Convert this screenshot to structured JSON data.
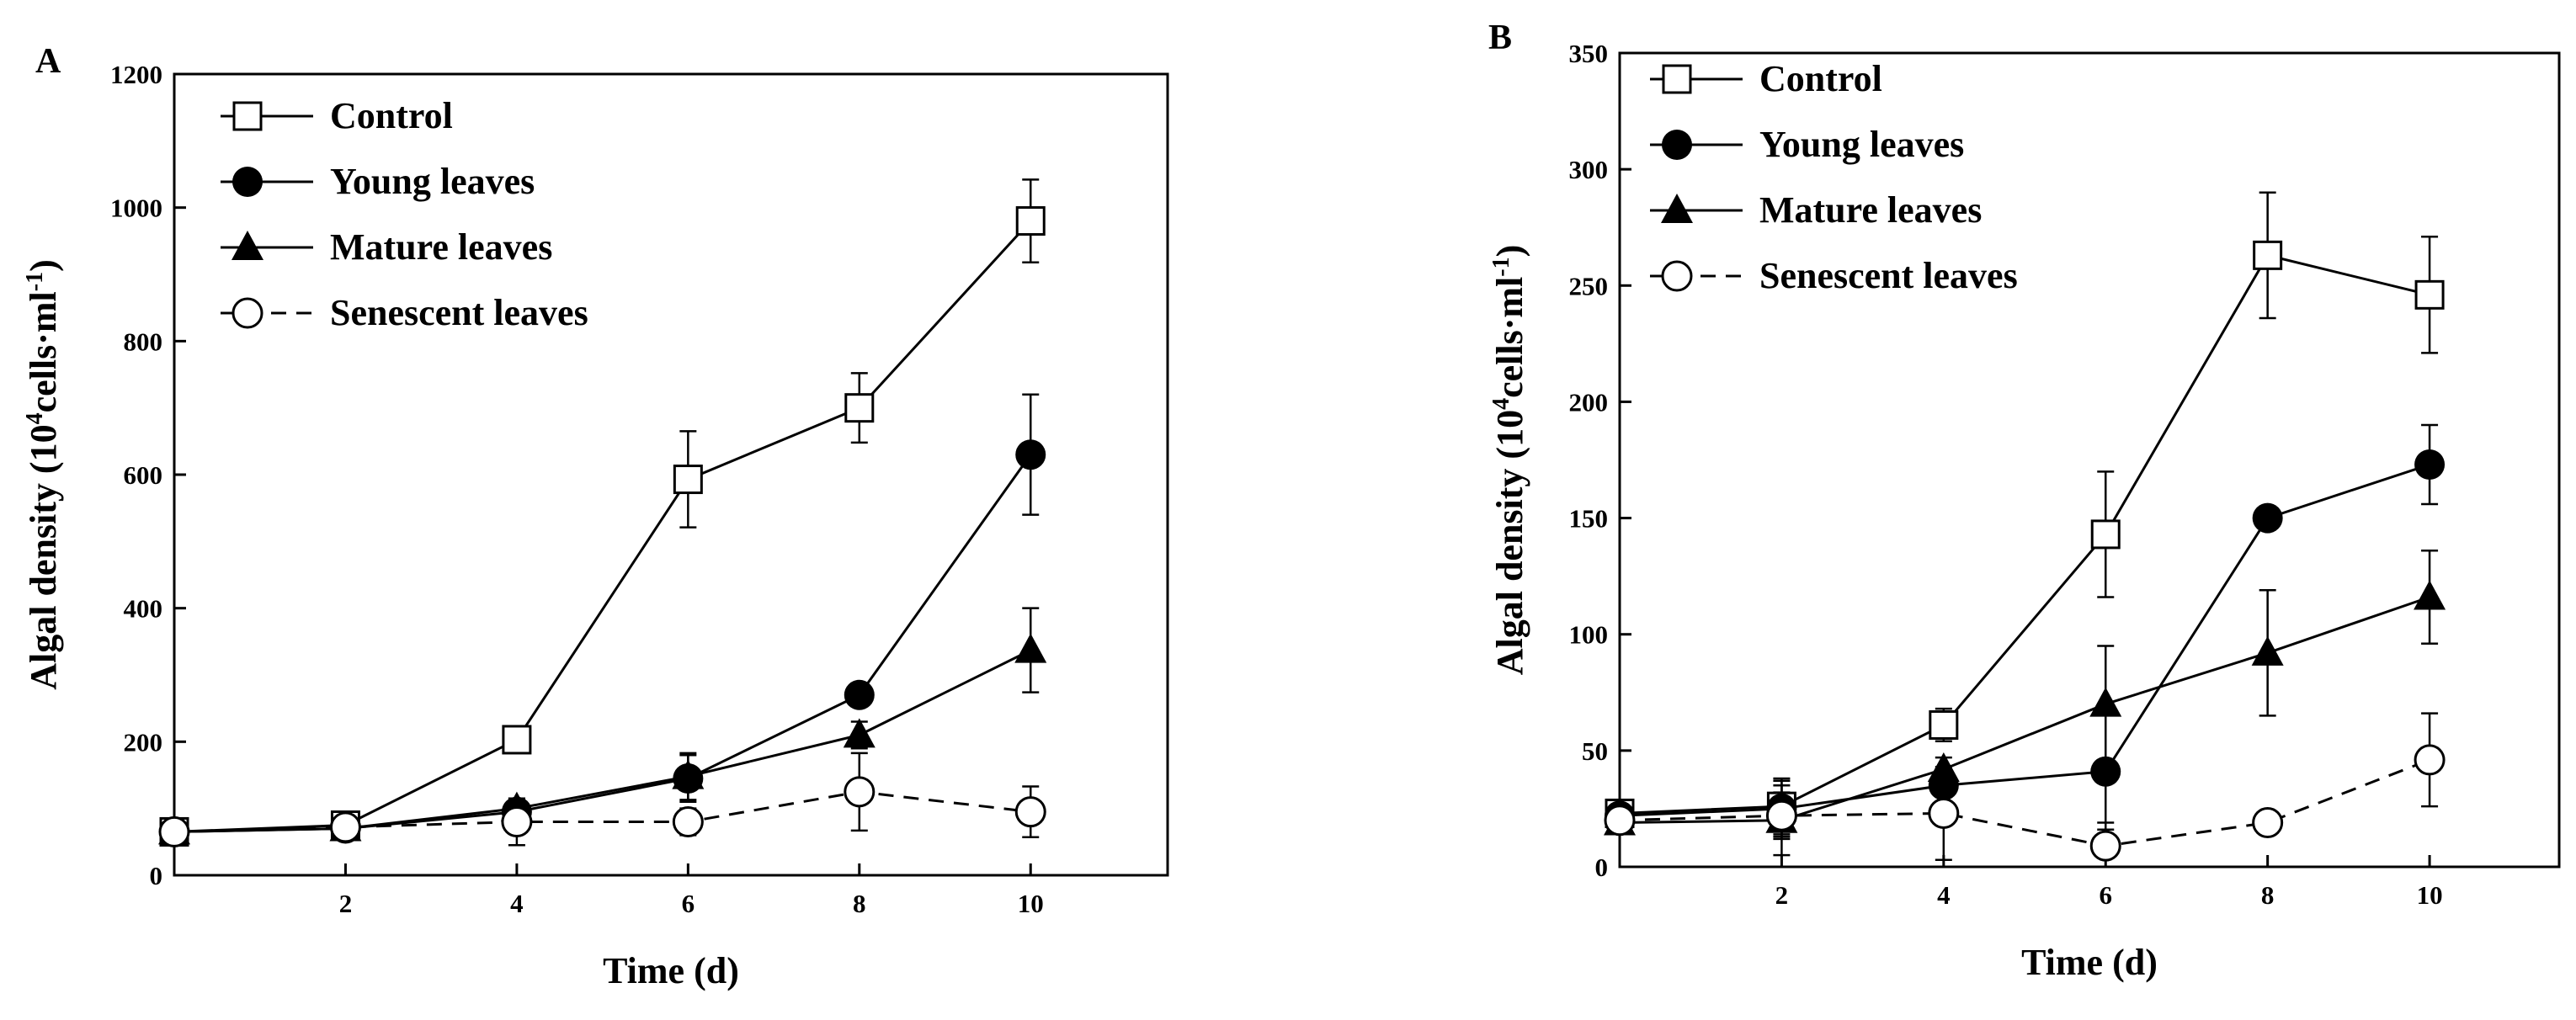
{
  "chart_data": [
    {
      "panel": "A",
      "type": "line",
      "xlabel": "Time (d)",
      "ylabel": {
        "prefix": "Algal density (10",
        "sup": "4",
        "mid": "cells·ml",
        "sup2": "-1",
        "suffix": ")"
      },
      "x": [
        0,
        2,
        4,
        6,
        8,
        10
      ],
      "xticks": [
        2,
        4,
        6,
        8,
        10
      ],
      "xlim": [
        0,
        11.6
      ],
      "ylim": [
        0,
        1200
      ],
      "yticks": [
        0,
        200,
        400,
        600,
        800,
        1000,
        1200
      ],
      "grid": false,
      "legend_position": "top-left",
      "series": [
        {
          "name": "Control",
          "marker": "open-square",
          "dashed": false,
          "values": [
            65,
            75,
            203,
            593,
            700,
            980
          ],
          "errors": [
            10,
            12,
            10,
            72,
            52,
            62
          ]
        },
        {
          "name": "Young leaves",
          "marker": "filled-circle",
          "dashed": false,
          "values": [
            65,
            70,
            95,
            145,
            270,
            630
          ],
          "errors": [
            8,
            10,
            15,
            35,
            10,
            90
          ]
        },
        {
          "name": "Mature leaves",
          "marker": "filled-triangle",
          "dashed": false,
          "values": [
            65,
            70,
            100,
            148,
            210,
            337
          ],
          "errors": [
            8,
            10,
            15,
            35,
            20,
            63
          ]
        },
        {
          "name": "Senescent leaves",
          "marker": "open-circle",
          "dashed": true,
          "values": [
            65,
            72,
            80,
            80,
            125,
            95
          ],
          "errors": [
            10,
            12,
            35,
            20,
            58,
            38
          ]
        }
      ]
    },
    {
      "panel": "B",
      "type": "line",
      "xlabel": "Time (d)",
      "ylabel": {
        "prefix": "Algal density (10",
        "sup": "4",
        "mid": "cells·ml",
        "sup2": "-1",
        "suffix": ")"
      },
      "x": [
        0,
        2,
        4,
        6,
        8,
        10
      ],
      "xticks": [
        2,
        4,
        6,
        8,
        10
      ],
      "xlim": [
        0,
        11.6
      ],
      "ylim": [
        0,
        350
      ],
      "yticks": [
        0,
        50,
        100,
        150,
        200,
        250,
        300,
        350
      ],
      "grid": false,
      "legend_position": "top-left",
      "series": [
        {
          "name": "Control",
          "marker": "open-square",
          "dashed": false,
          "values": [
            23,
            26,
            61,
            143,
            263,
            246
          ],
          "errors": [
            3,
            12,
            7,
            27,
            27,
            25
          ]
        },
        {
          "name": "Young leaves",
          "marker": "filled-circle",
          "dashed": false,
          "values": [
            22,
            25,
            35,
            41,
            150,
            173
          ],
          "errors": [
            3,
            12,
            5,
            25,
            5,
            17
          ]
        },
        {
          "name": "Mature leaves",
          "marker": "filled-triangle",
          "dashed": false,
          "values": [
            19,
            20,
            42,
            70,
            92,
            116
          ],
          "errors": [
            3,
            15,
            5,
            25,
            27,
            20
          ]
        },
        {
          "name": "Senescent leaves",
          "marker": "open-circle",
          "dashed": true,
          "values": [
            20,
            22,
            23,
            9,
            19,
            46
          ],
          "errors": [
            3,
            10,
            20,
            10,
            5,
            20
          ]
        }
      ]
    }
  ]
}
